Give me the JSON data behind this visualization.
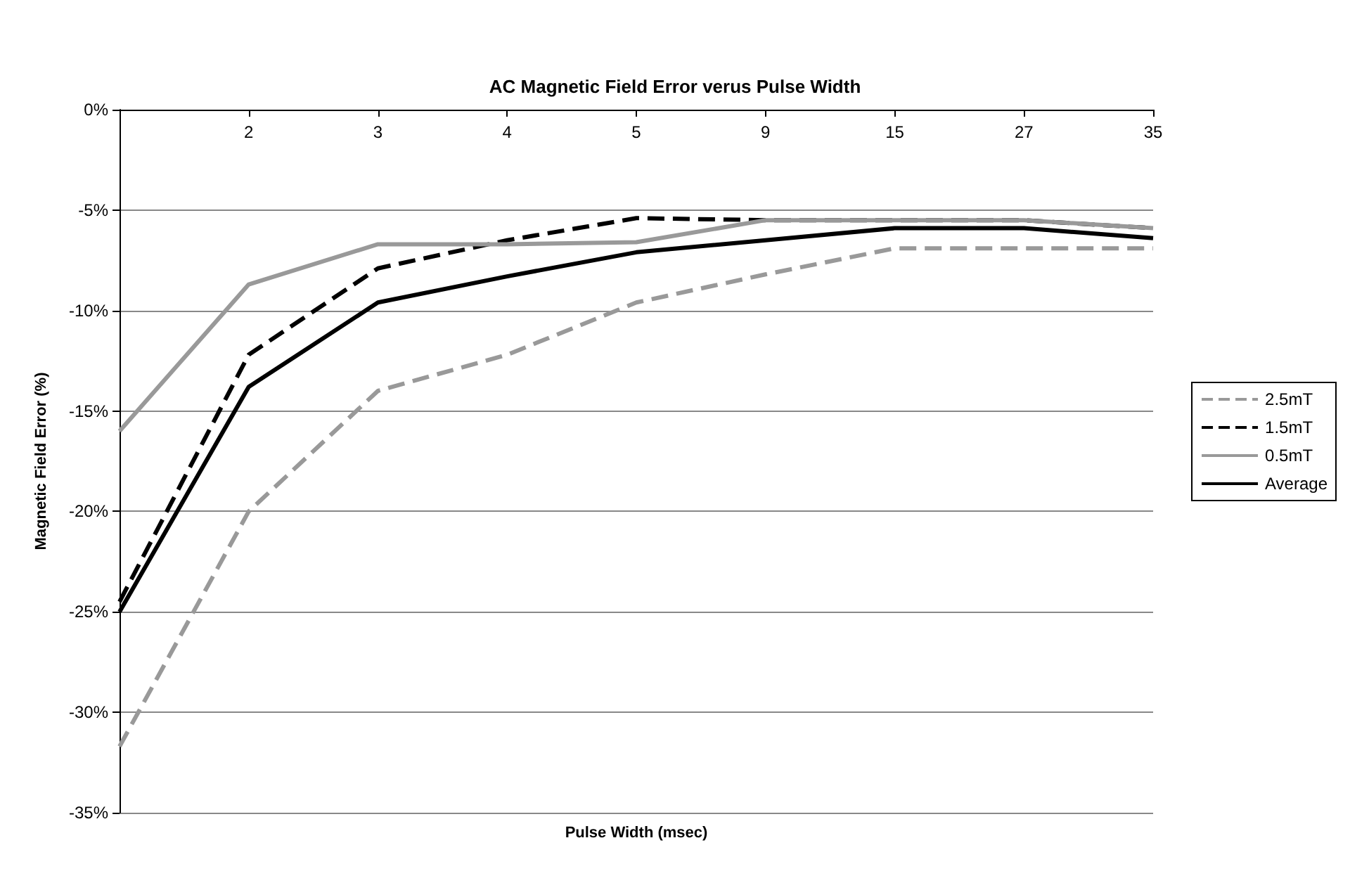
{
  "chart_data": {
    "type": "line",
    "title": "AC Magnetic Field Error verus Pulse Width",
    "xlabel": "Pulse Width (msec)",
    "ylabel": "Magnetic Field Error (%)",
    "categories": [
      null,
      "2",
      "3",
      "4",
      "5",
      "9",
      "15",
      "27",
      "35"
    ],
    "series": [
      {
        "name": "2.5mT",
        "color": "#999999",
        "line_style": "dashed",
        "values": [
          -31.7,
          -20.0,
          -14.0,
          -12.2,
          -9.6,
          -8.2,
          -6.9,
          -6.9,
          -6.9
        ]
      },
      {
        "name": "1.5mT",
        "color": "#000000",
        "line_style": "dashed",
        "values": [
          -24.5,
          -12.2,
          -7.9,
          -6.5,
          -5.4,
          -5.5,
          -5.5,
          -5.5,
          -5.9
        ]
      },
      {
        "name": "0.5mT",
        "color": "#999999",
        "line_style": "solid",
        "values": [
          -16.0,
          -8.7,
          -6.7,
          -6.7,
          -6.6,
          -5.5,
          -5.5,
          -5.5,
          -5.9
        ]
      },
      {
        "name": "Average",
        "color": "#000000",
        "line_style": "solid",
        "values": [
          -25.0,
          -13.8,
          -9.6,
          -8.3,
          -7.1,
          -6.5,
          -5.9,
          -5.9,
          -6.4
        ]
      }
    ],
    "ylim": [
      -35,
      0
    ],
    "yticks": [
      {
        "value": 0,
        "label": "0%"
      },
      {
        "value": -5,
        "label": "-5%"
      },
      {
        "value": -10,
        "label": "-10%"
      },
      {
        "value": -15,
        "label": "-15%"
      },
      {
        "value": -20,
        "label": "-20%"
      },
      {
        "value": -25,
        "label": "-25%"
      },
      {
        "value": -30,
        "label": "-30%"
      },
      {
        "value": -35,
        "label": "-35%"
      }
    ],
    "grid": "y",
    "legend": "right",
    "marker": "none"
  }
}
